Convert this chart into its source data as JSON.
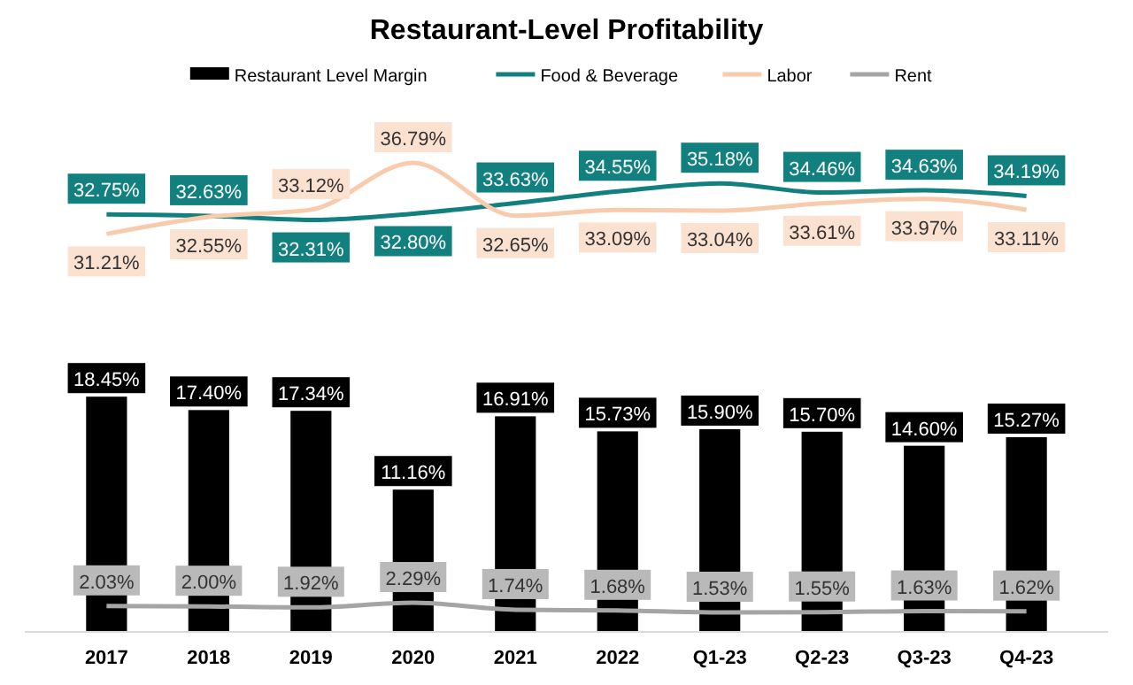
{
  "chart_data": {
    "type": "bar",
    "title": "Restaurant-Level Profitability",
    "categories": [
      "2017",
      "2018",
      "2019",
      "2020",
      "2021",
      "2022",
      "Q1-23",
      "Q2-23",
      "Q3-23",
      "Q4-23"
    ],
    "series": [
      {
        "name": "Restaurant Level Margin",
        "type": "bar",
        "color": "#000000",
        "values": [
          18.45,
          17.4,
          17.34,
          11.16,
          16.91,
          15.73,
          15.9,
          15.7,
          14.6,
          15.27
        ],
        "value_labels": [
          "18.45%",
          "17.40%",
          "17.34%",
          "11.16%",
          "16.91%",
          "15.73%",
          "15.90%",
          "15.70%",
          "14.60%",
          "15.27%"
        ]
      },
      {
        "name": "Food & Beverage",
        "type": "line",
        "color": "#138080",
        "values": [
          32.75,
          32.63,
          32.31,
          32.8,
          33.63,
          34.55,
          35.18,
          34.46,
          34.63,
          34.19
        ],
        "value_labels": [
          "32.75%",
          "32.63%",
          "32.31%",
          "32.80%",
          "33.63%",
          "34.55%",
          "35.18%",
          "34.46%",
          "34.63%",
          "34.19%"
        ]
      },
      {
        "name": "Labor",
        "type": "line",
        "color": "#f8cbad",
        "values": [
          31.21,
          32.55,
          33.12,
          36.79,
          32.65,
          33.09,
          33.04,
          33.61,
          33.97,
          33.11
        ],
        "value_labels": [
          "31.21%",
          "32.55%",
          "33.12%",
          "36.79%",
          "32.65%",
          "33.09%",
          "33.04%",
          "33.61%",
          "33.97%",
          "33.11%"
        ]
      },
      {
        "name": "Rent",
        "type": "line",
        "color": "#a5a5a5",
        "values": [
          2.03,
          2.0,
          1.92,
          2.29,
          1.74,
          1.68,
          1.53,
          1.55,
          1.63,
          1.62
        ],
        "value_labels": [
          "2.03%",
          "2.00%",
          "1.92%",
          "2.29%",
          "1.74%",
          "1.68%",
          "1.53%",
          "1.55%",
          "1.63%",
          "1.62%"
        ]
      }
    ],
    "tick_labels": "x",
    "legend": "top"
  }
}
